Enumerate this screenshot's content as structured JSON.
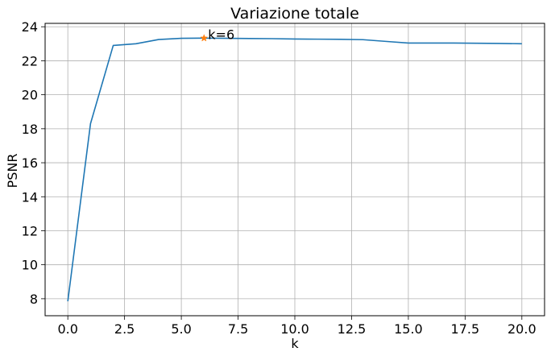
{
  "chart_data": {
    "type": "line",
    "title": "Variazione totale",
    "xlabel": "k",
    "ylabel": "PSNR",
    "xlim": [
      -1,
      21
    ],
    "ylim": [
      7.0,
      24.2
    ],
    "xticks": [
      0.0,
      2.5,
      5.0,
      7.5,
      10.0,
      12.5,
      15.0,
      17.5,
      20.0
    ],
    "xtick_labels": [
      "0.0",
      "2.5",
      "5.0",
      "7.5",
      "10.0",
      "12.5",
      "15.0",
      "17.5",
      "20.0"
    ],
    "yticks": [
      8,
      10,
      12,
      14,
      16,
      18,
      20,
      22,
      24
    ],
    "ytick_labels": [
      "8",
      "10",
      "12",
      "14",
      "16",
      "18",
      "20",
      "22",
      "24"
    ],
    "grid": true,
    "series": [
      {
        "color": "#1f77b4",
        "x": [
          0,
          1,
          2,
          3,
          4,
          5,
          6,
          7,
          8,
          9,
          10,
          11,
          12,
          13,
          14,
          15,
          16,
          17,
          18,
          19,
          20
        ],
        "y": [
          7.85,
          18.3,
          22.9,
          23.0,
          23.25,
          23.32,
          23.33,
          23.32,
          23.31,
          23.3,
          23.28,
          23.27,
          23.26,
          23.24,
          23.14,
          23.04,
          23.04,
          23.04,
          23.03,
          23.02,
          23.0
        ]
      }
    ],
    "marker": {
      "x": 6,
      "y": 23.33,
      "symbol": "star",
      "color": "#ff7f0e"
    },
    "annotation": {
      "text": "k=6",
      "x": 6,
      "y": 23.33
    }
  }
}
